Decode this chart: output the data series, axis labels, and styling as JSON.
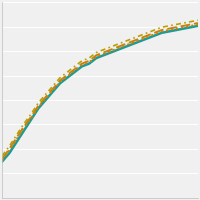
{
  "background_color": "#f0f0f0",
  "grid_color": "#ffffff",
  "figsize": [
    2.0,
    2.0
  ],
  "dpi": 100,
  "xlim": [
    0,
    27
  ],
  "ylim": [
    20,
    90
  ],
  "ytick_count": 9,
  "lines": [
    {
      "color": "#1a9b96",
      "lw": 1.8,
      "ls": "solid",
      "dashes": null,
      "values": [
        33,
        36,
        40,
        44,
        48,
        52,
        55,
        58,
        61,
        63,
        65,
        67,
        68,
        70,
        71,
        72,
        73,
        74,
        75,
        76,
        77,
        78,
        79,
        79.5,
        80,
        80.5,
        81,
        81.5
      ]
    },
    {
      "color": "#c88010",
      "lw": 1.4,
      "ls": "dashed",
      "dashes": [
        5,
        2
      ],
      "values": [
        34,
        37.5,
        41.5,
        45.5,
        49,
        53,
        56,
        59,
        62,
        64,
        66,
        68,
        69,
        71,
        72,
        73,
        74,
        75,
        76,
        77,
        78,
        79,
        80,
        80.5,
        81,
        81.5,
        82,
        82.5
      ]
    },
    {
      "color": "#c88010",
      "lw": 1.4,
      "ls": "dotted",
      "dashes": null,
      "values": [
        33.5,
        37,
        41,
        45,
        48.5,
        52.5,
        55.5,
        58.5,
        61.5,
        63.5,
        65.5,
        67.5,
        68.5,
        70.5,
        71.5,
        72.5,
        73.5,
        74.5,
        75.5,
        76.5,
        77.5,
        78.5,
        79.5,
        80,
        80.5,
        81,
        81.5,
        82
      ]
    },
    {
      "color": "#b8a000",
      "lw": 1.2,
      "ls": "dashed",
      "dashes": [
        3,
        2,
        1,
        2
      ],
      "values": [
        35,
        38.5,
        42.5,
        46.5,
        50,
        54,
        57,
        60,
        63,
        65,
        67,
        69,
        70,
        72,
        73,
        74,
        75,
        76,
        77,
        78,
        79,
        80,
        81,
        81.5,
        82,
        82.5,
        83,
        83.5
      ]
    }
  ]
}
